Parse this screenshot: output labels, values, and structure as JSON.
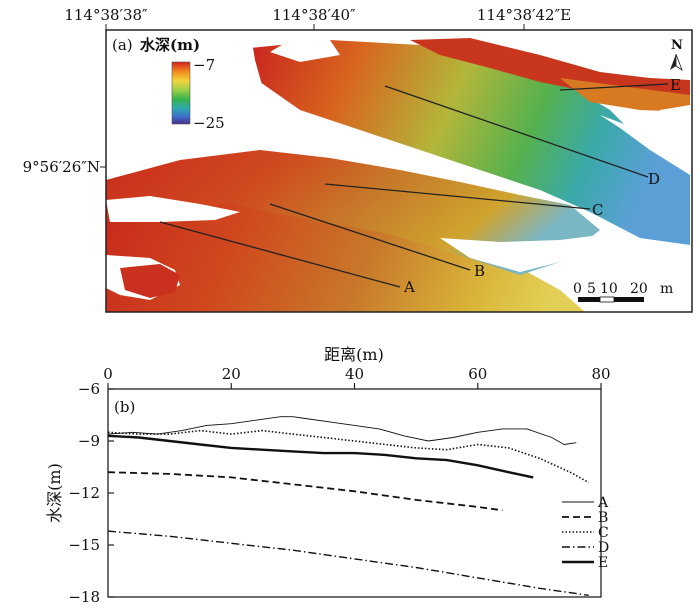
{
  "panel_a": {
    "panel_label": "(a)",
    "title": "水深(m)",
    "colorbar": {
      "max_label": "−7",
      "min_label": "−25",
      "max": -7,
      "min": -25,
      "colors": [
        "#d21f1f",
        "#f08a1e",
        "#f4d23a",
        "#9dd24a",
        "#36b24a",
        "#2fa8b0",
        "#3b6fc8",
        "#4b2e8c"
      ]
    },
    "top_ticks": [
      "114°38′38″",
      "114°38′40″",
      "114°38′42″E"
    ],
    "left_tick": "9°56′26″N",
    "north_label": "N",
    "scale_bar": {
      "labels": [
        "0",
        "5",
        "10",
        "20"
      ],
      "unit": "m",
      "values": [
        0,
        5,
        10,
        20
      ]
    },
    "profile_labels": [
      "A",
      "B",
      "C",
      "D",
      "E"
    ]
  },
  "chart_data": {
    "type": "line",
    "panel_label": "(b)",
    "xlabel": "距离(m)",
    "ylabel": "水深(m)",
    "xlim": [
      0,
      80
    ],
    "ylim": [
      -18,
      -6
    ],
    "xticks": [
      0,
      20,
      40,
      60,
      80
    ],
    "yticks": [
      -6,
      -9,
      -12,
      -15,
      -18
    ],
    "legend_position": "bottom-right",
    "series": [
      {
        "name": "A",
        "style": "solid-thin",
        "x": [
          0,
          4,
          8,
          12,
          16,
          20,
          24,
          28,
          30,
          32,
          36,
          40,
          44,
          48,
          52,
          56,
          60,
          64,
          68,
          72,
          74,
          76
        ],
        "y": [
          -8.6,
          -8.5,
          -8.6,
          -8.4,
          -8.1,
          -8.0,
          -7.8,
          -7.6,
          -7.6,
          -7.7,
          -7.9,
          -8.1,
          -8.3,
          -8.7,
          -9.0,
          -8.8,
          -8.5,
          -8.3,
          -8.3,
          -8.8,
          -9.2,
          -9.1
        ]
      },
      {
        "name": "B",
        "style": "dashed",
        "x": [
          0,
          10,
          20,
          30,
          40,
          50,
          60,
          64
        ],
        "y": [
          -10.8,
          -10.9,
          -11.1,
          -11.5,
          -11.9,
          -12.4,
          -12.8,
          -13.0
        ]
      },
      {
        "name": "C",
        "style": "dotted",
        "x": [
          0,
          5,
          10,
          15,
          20,
          25,
          30,
          35,
          40,
          45,
          50,
          55,
          60,
          65,
          70,
          75,
          78
        ],
        "y": [
          -8.5,
          -8.6,
          -8.6,
          -8.4,
          -8.6,
          -8.4,
          -8.6,
          -8.8,
          -9.0,
          -9.2,
          -9.4,
          -9.5,
          -9.2,
          -9.4,
          -10.0,
          -10.8,
          -11.4
        ]
      },
      {
        "name": "D",
        "style": "dashdot",
        "x": [
          0,
          10,
          20,
          30,
          40,
          50,
          60,
          70,
          78
        ],
        "y": [
          -14.2,
          -14.5,
          -14.9,
          -15.3,
          -15.8,
          -16.3,
          -16.9,
          -17.5,
          -17.9
        ]
      },
      {
        "name": "E",
        "style": "solid-thick",
        "x": [
          0,
          5,
          10,
          15,
          20,
          25,
          30,
          35,
          40,
          45,
          50,
          55,
          60,
          65,
          69
        ],
        "y": [
          -8.7,
          -8.8,
          -9.0,
          -9.2,
          -9.4,
          -9.5,
          -9.6,
          -9.7,
          -9.7,
          -9.8,
          -10.0,
          -10.1,
          -10.4,
          -10.8,
          -11.1
        ]
      }
    ]
  }
}
